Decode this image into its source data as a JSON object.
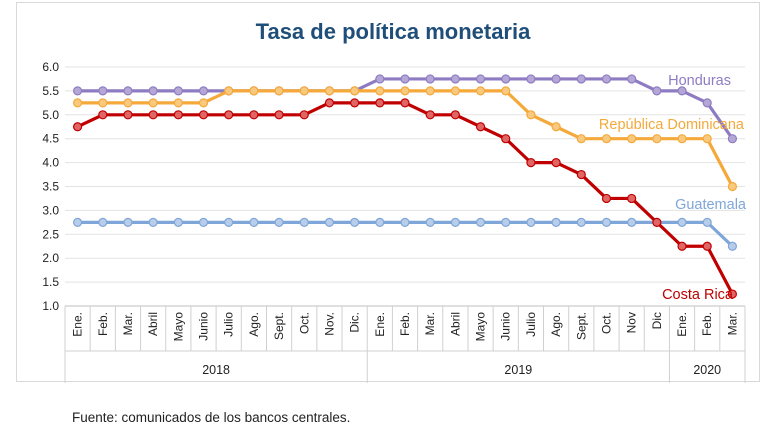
{
  "chart_data": {
    "type": "line",
    "title": "Tasa de política monetaria",
    "xlabel": "",
    "ylabel": "",
    "ylim": [
      1.0,
      6.0
    ],
    "yticks": [
      "1.0",
      "1.5",
      "2.0",
      "2.5",
      "3.0",
      "3.5",
      "4.0",
      "4.5",
      "5.0",
      "5.5",
      "6.0"
    ],
    "grid": true,
    "categories": [
      "Ene.",
      "Feb.",
      "Mar.",
      "Abril",
      "Mayo",
      "Junio",
      "Julio",
      "Ago.",
      "Sept.",
      "Oct.",
      "Nov.",
      "Dic.",
      "Ene.",
      "Feb.",
      "Mar.",
      "Abril",
      "Mayo",
      "Junio",
      "Julio",
      "Ago.",
      "Sept.",
      "Oct.",
      "Nov",
      "Dic",
      "Ene.",
      "Feb.",
      "Mar."
    ],
    "year_groups": [
      {
        "label": "2018",
        "span": 12
      },
      {
        "label": "2019",
        "span": 12
      },
      {
        "label": "2020",
        "span": 3
      }
    ],
    "series": [
      {
        "name": "Honduras",
        "color": "#8e7cc3",
        "fill": "#b4a7d6",
        "values": [
          5.5,
          5.5,
          5.5,
          5.5,
          5.5,
          5.5,
          5.5,
          5.5,
          5.5,
          5.5,
          5.5,
          5.5,
          5.75,
          5.75,
          5.75,
          5.75,
          5.75,
          5.75,
          5.75,
          5.75,
          5.75,
          5.75,
          5.75,
          5.5,
          5.5,
          5.25,
          4.5
        ]
      },
      {
        "name": "República Dominicana",
        "color": "#f4a93a",
        "fill": "#f9c97f",
        "values": [
          5.25,
          5.25,
          5.25,
          5.25,
          5.25,
          5.25,
          5.5,
          5.5,
          5.5,
          5.5,
          5.5,
          5.5,
          5.5,
          5.5,
          5.5,
          5.5,
          5.5,
          5.5,
          5.0,
          4.75,
          4.5,
          4.5,
          4.5,
          4.5,
          4.5,
          4.5,
          3.5
        ]
      },
      {
        "name": "Guatemala",
        "color": "#7ea6d8",
        "fill": "#b7cde9",
        "values": [
          2.75,
          2.75,
          2.75,
          2.75,
          2.75,
          2.75,
          2.75,
          2.75,
          2.75,
          2.75,
          2.75,
          2.75,
          2.75,
          2.75,
          2.75,
          2.75,
          2.75,
          2.75,
          2.75,
          2.75,
          2.75,
          2.75,
          2.75,
          2.75,
          2.75,
          2.75,
          2.25
        ]
      },
      {
        "name": "Costa Rica",
        "color": "#c00000",
        "fill": "#e06666",
        "values": [
          4.75,
          5.0,
          5.0,
          5.0,
          5.0,
          5.0,
          5.0,
          5.0,
          5.0,
          5.0,
          5.25,
          5.25,
          5.25,
          5.25,
          5.0,
          5.0,
          4.75,
          4.5,
          4.0,
          4.0,
          3.75,
          3.25,
          3.25,
          2.75,
          2.25,
          2.25,
          1.25
        ]
      }
    ],
    "title_color": "#1f4e79"
  },
  "footer": {
    "source": "Fuente: comunicados de los bancos centrales."
  }
}
